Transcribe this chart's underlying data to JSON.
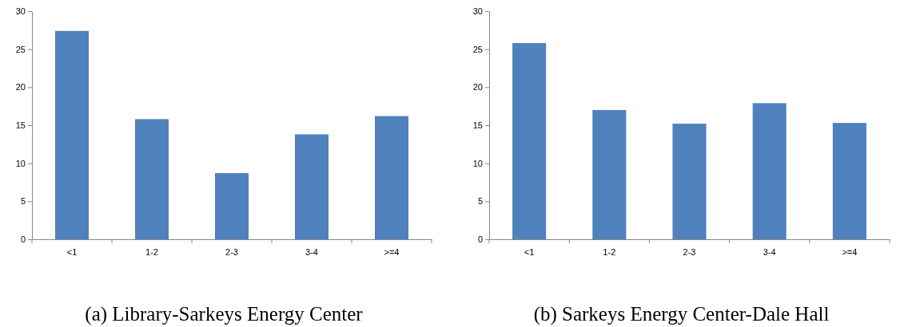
{
  "chart_data": [
    {
      "type": "bar",
      "title": "(a) Library-Sarkeys Energy Center",
      "categories": [
        "<1",
        "1-2",
        "2-3",
        "3-4",
        ">=4"
      ],
      "values": [
        27.4,
        15.8,
        8.7,
        13.8,
        16.2
      ],
      "color": "#4f81bd",
      "ylim": [
        0,
        30
      ],
      "yticks": [
        0,
        5,
        10,
        15,
        20,
        25,
        30
      ],
      "grid": false
    },
    {
      "type": "bar",
      "title": "(b) Sarkeys Energy Center-Dale Hall",
      "categories": [
        "<1",
        "1-2",
        "2-3",
        "3-4",
        ">=4"
      ],
      "values": [
        25.8,
        17.0,
        15.2,
        17.9,
        15.3
      ],
      "color": "#4f81bd",
      "ylim": [
        0,
        30
      ],
      "yticks": [
        0,
        5,
        10,
        15,
        20,
        25,
        30
      ],
      "grid": false
    }
  ]
}
